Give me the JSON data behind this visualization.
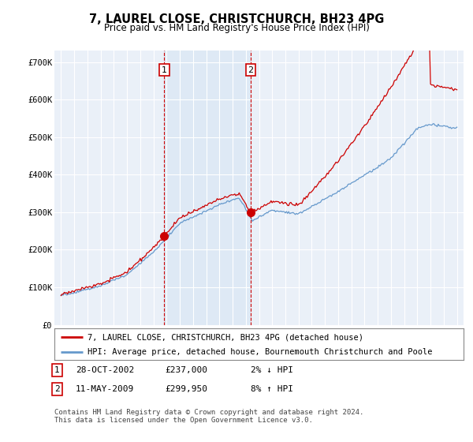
{
  "title": "7, LAUREL CLOSE, CHRISTCHURCH, BH23 4PG",
  "subtitle": "Price paid vs. HM Land Registry's House Price Index (HPI)",
  "ylabel_ticks": [
    "£0",
    "£100K",
    "£200K",
    "£300K",
    "£400K",
    "£500K",
    "£600K",
    "£700K"
  ],
  "ytick_values": [
    0,
    100000,
    200000,
    300000,
    400000,
    500000,
    600000,
    700000
  ],
  "ylim": [
    0,
    730000
  ],
  "hpi_color": "#6699cc",
  "price_color": "#cc0000",
  "shade_color": "#dde8f5",
  "transaction1_x": 2002.83,
  "transaction1_price": 237000,
  "transaction2_x": 2009.37,
  "transaction2_price": 299950,
  "legend_line1": "7, LAUREL CLOSE, CHRISTCHURCH, BH23 4PG (detached house)",
  "legend_line2": "HPI: Average price, detached house, Bournemouth Christchurch and Poole",
  "footnote": "Contains HM Land Registry data © Crown copyright and database right 2024.\nThis data is licensed under the Open Government Licence v3.0.",
  "background_color": "#ffffff",
  "plot_bg_color": "#eaf0f8",
  "grid_color": "#ffffff",
  "xlim_left": 1994.5,
  "xlim_right": 2025.5
}
